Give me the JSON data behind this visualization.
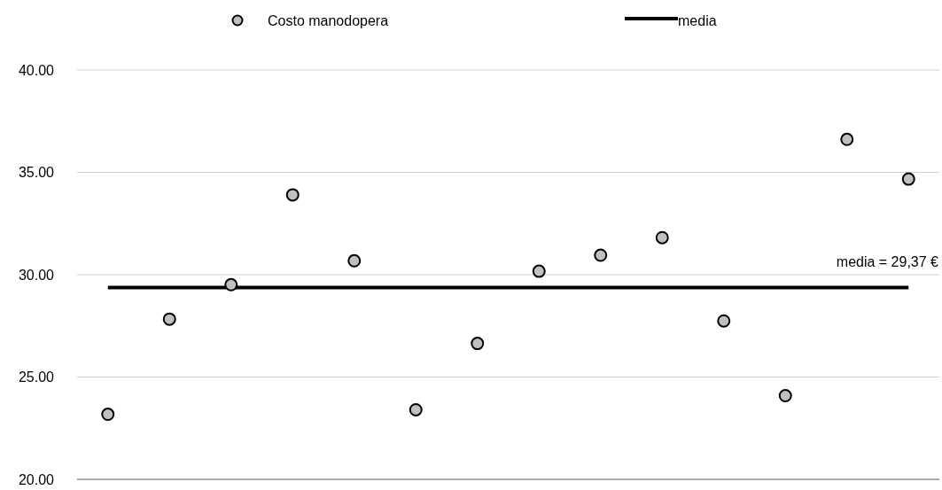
{
  "chart_data": {
    "type": "scatter",
    "categories": [
      null,
      null,
      null,
      null,
      null,
      null,
      null,
      null,
      null,
      null,
      null,
      null,
      null,
      null
    ],
    "series": [
      {
        "name": "Costo manodopera",
        "color": "#c0c0c0",
        "marker": "circle",
        "values": [
          23.18,
          27.83,
          29.51,
          33.9,
          30.68,
          23.4,
          26.64,
          30.17,
          30.95,
          31.81,
          27.74,
          24.09,
          36.61,
          34.67
        ]
      },
      {
        "name": "media",
        "type": "line",
        "color": "#000000",
        "marker": "none",
        "line_style": "solid",
        "values": [
          29.37,
          29.37,
          29.37,
          29.37,
          29.37,
          29.37,
          29.37,
          29.37,
          29.37,
          29.37,
          29.37,
          29.37,
          29.37,
          29.37
        ]
      }
    ],
    "ylim": [
      20,
      40
    ],
    "yticks": [
      {
        "value": 20,
        "label": "20.00"
      },
      {
        "value": 25,
        "label": "25.00"
      },
      {
        "value": 30,
        "label": "30.00"
      },
      {
        "value": 35,
        "label": "35.00"
      },
      {
        "value": 40,
        "label": "40.00"
      }
    ],
    "grid": "y",
    "legend": "top",
    "annotations": [
      "media = 29,37 €"
    ]
  }
}
